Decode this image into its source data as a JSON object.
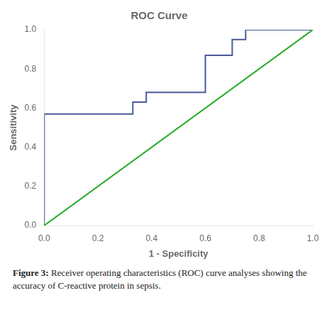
{
  "chart_data": {
    "type": "line",
    "title": "ROC Curve",
    "xlabel": "1 - Specificity",
    "ylabel": "Sensitivity",
    "series": [
      {
        "x": [
          0.0,
          1.0
        ],
        "values": [
          0.0,
          1.0
        ],
        "color": "#22aa22"
      },
      {
        "x": [
          0.0,
          0.0,
          0.33,
          0.33,
          0.38,
          0.38,
          0.6,
          0.6,
          0.7,
          0.7,
          0.75,
          0.75,
          1.0,
          1.0
        ],
        "values": [
          0.0,
          0.57,
          0.57,
          0.63,
          0.63,
          0.68,
          0.68,
          0.87,
          0.87,
          0.95,
          0.95,
          1.0,
          1.0,
          1.0
        ],
        "color": "#4a5a9a"
      }
    ],
    "xlim": [
      0.0,
      1.0
    ],
    "ylim": [
      0.0,
      1.0
    ],
    "xticks": [
      {
        "value": 0,
        "label": "0.0"
      },
      0.2,
      0.4,
      0.6,
      0.8,
      {
        "value": 1,
        "label": "1.0"
      }
    ],
    "yticks": [
      {
        "value": 0,
        "label": "0.0"
      },
      0.2,
      0.4,
      0.6,
      0.8,
      {
        "value": 1,
        "label": "1.0"
      }
    ],
    "grid": false,
    "annotations": [
      "Figure 3: Receiver operating characteristics (ROC) curve analyses showing the accuracy of C-reactive protein in sepsis."
    ]
  }
}
